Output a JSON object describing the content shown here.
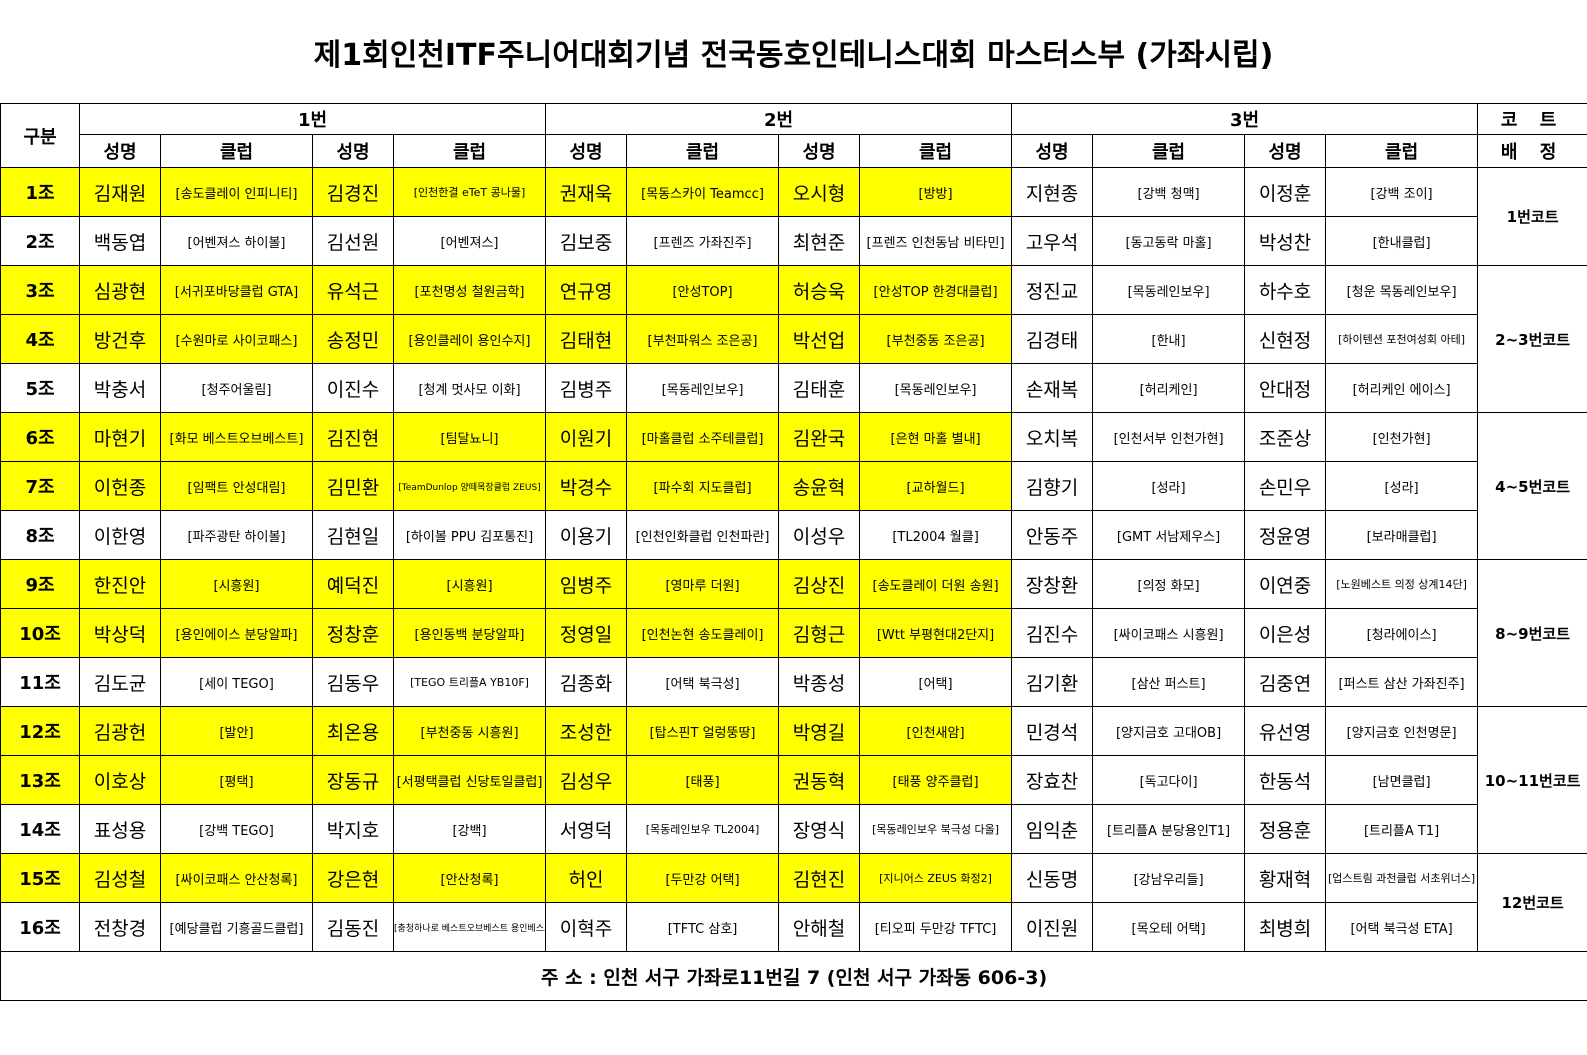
{
  "title": "제1회인천ITF주니어대회기념 전국동호인테니스대회 마스터스부 (가좌시립)",
  "headers": {
    "group": "구분",
    "court_top": "코 트",
    "court_bottom": "배 정",
    "slots": [
      "1번",
      "2번",
      "3번"
    ],
    "name": "성명",
    "club": "클럽"
  },
  "rows": [
    {
      "group": "1조",
      "hl": true,
      "cells": [
        "김재원",
        "[송도클레이 인피니티]",
        "김경진",
        "[인천한결 eTeT 콩나물]",
        "권재욱",
        "[목동스카이 Teamcc]",
        "오시형",
        "[방방]",
        "지현종",
        "[강백 청맥]",
        "이정훈",
        "[강백 조이]"
      ]
    },
    {
      "group": "2조",
      "hl": false,
      "cells": [
        "백동엽",
        "[어벤져스 하이볼]",
        "김선원",
        "[어벤져스]",
        "김보중",
        "[프렌즈 가좌진주]",
        "최현준",
        "[프렌즈 인천동남 비타민]",
        "고우석",
        "[동고동락 마홀]",
        "박성찬",
        "[한내클럽]"
      ]
    },
    {
      "group": "3조",
      "hl": true,
      "cells": [
        "심광현",
        "[서귀포바당클럽 GTA]",
        "유석근",
        "[포천명성 철원금학]",
        "연규영",
        "[안성TOP]",
        "허승욱",
        "[안성TOP 한경대클럽]",
        "정진교",
        "[목동레인보우]",
        "하수호",
        "[청운 목동레인보우]"
      ]
    },
    {
      "group": "4조",
      "hl": true,
      "cells": [
        "방건후",
        "[수원마로 사이코패스]",
        "송정민",
        "[용인클레이 용인수지]",
        "김태현",
        "[부천파워스 조은공]",
        "박선업",
        "[부천중동 조은공]",
        "김경태",
        "[한내]",
        "신현정",
        "[하이텐션 포천여성회 아테]"
      ]
    },
    {
      "group": "5조",
      "hl": false,
      "cells": [
        "박충서",
        "[청주어울림]",
        "이진수",
        "[청계 멋사모 이화]",
        "김병주",
        "[목동레인보우]",
        "김태훈",
        "[목동레인보우]",
        "손재복",
        "[허리케인]",
        "안대정",
        "[허리케인 에이스]"
      ]
    },
    {
      "group": "6조",
      "hl": true,
      "cells": [
        "마현기",
        "[화모 베스트오브베스트]",
        "김진현",
        "[팀달뇨니]",
        "이원기",
        "[마홀클럽 소주테클럽]",
        "김완국",
        "[은현 마홀 별내]",
        "오치복",
        "[인천서부 인천가현]",
        "조준상",
        "[인천가현]"
      ]
    },
    {
      "group": "7조",
      "hl": true,
      "cells": [
        "이헌종",
        "[임팩트 안성대림]",
        "김민환",
        "[TeamDunlop 양떼목장클럽 ZEUS]",
        "박경수",
        "[파수회 지도클럽]",
        "송윤혁",
        "[교하월드]",
        "김향기",
        "[성라]",
        "손민우",
        "[성라]"
      ]
    },
    {
      "group": "8조",
      "hl": false,
      "cells": [
        "이한영",
        "[파주광탄 하이볼]",
        "김현일",
        "[하이볼 PPU 김포통진]",
        "이용기",
        "[인천인화클럽 인천파란]",
        "이성우",
        "[TL2004 월클]",
        "안동주",
        "[GMT 서남제우스]",
        "정윤영",
        "[보라매클럽]"
      ]
    },
    {
      "group": "9조",
      "hl": true,
      "cells": [
        "한진안",
        "[시흥원]",
        "예덕진",
        "[시흥원]",
        "임병주",
        "[영마루 더원]",
        "김상진",
        "[송도클레이 더원 송원]",
        "장창환",
        "[의정 화모]",
        "이연중",
        "[노원베스트 의정 상계14단]"
      ]
    },
    {
      "group": "10조",
      "hl": true,
      "cells": [
        "박상덕",
        "[용인에이스 분당알파]",
        "정창훈",
        "[용인동백 분당알파]",
        "정영일",
        "[인천논현 송도클레이]",
        "김형근",
        "[Wtt 부평현대2단지]",
        "김진수",
        "[싸이코패스 시흥원]",
        "이은성",
        "[청라에이스]"
      ]
    },
    {
      "group": "11조",
      "hl": false,
      "cells": [
        "김도균",
        "[세이 TEGO]",
        "김동우",
        "[TEGO 트리플A YB10F]",
        "김종화",
        "[어택 북극성]",
        "박종성",
        "[어택]",
        "김기환",
        "[삼산 퍼스트]",
        "김중연",
        "[퍼스트 삼산 가좌진주]"
      ]
    },
    {
      "group": "12조",
      "hl": true,
      "cells": [
        "김광헌",
        "[발안]",
        "최온용",
        "[부천중동 시흥원]",
        "조성한",
        "[탑스핀T 얼렁뚱땅]",
        "박영길",
        "[인천새암]",
        "민경석",
        "[양지금호 고대OB]",
        "유선영",
        "[양지금호 인천명문]"
      ]
    },
    {
      "group": "13조",
      "hl": true,
      "cells": [
        "이호상",
        "[평택]",
        "장동규",
        "[서평택클럽 신당토일클럽]",
        "김성우",
        "[태풍]",
        "권동혁",
        "[태풍 양주클럽]",
        "장효찬",
        "[독고다이]",
        "한동석",
        "[남면클럽]"
      ]
    },
    {
      "group": "14조",
      "hl": false,
      "cells": [
        "표성용",
        "[강백 TEGO]",
        "박지호",
        "[강백]",
        "서영덕",
        "[목동레인보우 TL2004]",
        "장영식",
        "[목동레인보우 북극성 다올]",
        "임익춘",
        "[트리플A 분당용인T1]",
        "정용훈",
        "[트리플A T1]"
      ]
    },
    {
      "group": "15조",
      "hl": true,
      "cells": [
        "김성철",
        "[싸이코패스 안산청록]",
        "강은현",
        "[안산청록]",
        "허인",
        "[두만강 어택]",
        "김현진",
        "[지니어스 ZEUS 화정2]",
        "신동명",
        "[강남우리들]",
        "황재혁",
        "[업스트림 과천클럽 서초위너스]"
      ]
    },
    {
      "group": "16조",
      "hl": false,
      "cells": [
        "전창경",
        "[예당클럽 기흥골드클럽]",
        "김동진",
        "[충청하나로 베스트오브베스트 용인베스트]",
        "이혁주",
        "[TFTC 삼호]",
        "안해철",
        "[티오피 두만강 TFTC]",
        "이진원",
        "[목오테 어택]",
        "최병희",
        "[어택 북극성 ETA]"
      ]
    }
  ],
  "courts": [
    {
      "label": "1번코트",
      "span": 2
    },
    {
      "label": "2~3번코트",
      "span": 3
    },
    {
      "label": "4~5번코트",
      "span": 3
    },
    {
      "label": "8~9번코트",
      "span": 3
    },
    {
      "label": "10~11번코트",
      "span": 3
    },
    {
      "label": "12번코트",
      "span": 2
    }
  ],
  "footer": "주 소 : 인천 서구 가좌로11번길 7 (인천 서구 가좌동 606-3)",
  "colors": {
    "highlight": "#ffff00",
    "border": "#000000"
  }
}
